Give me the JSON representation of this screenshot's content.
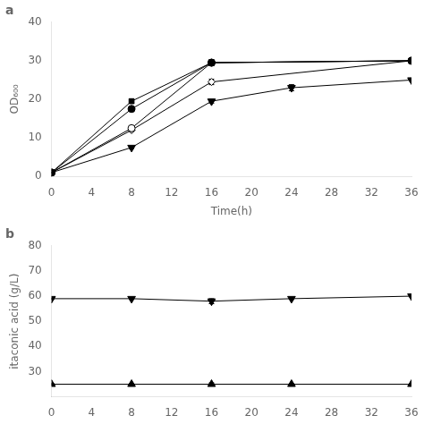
{
  "chart_data": [
    {
      "type": "line",
      "title": "a",
      "xlabel": "Time(h)",
      "ylabel": "OD₆₀₀",
      "xlim": [
        0,
        36
      ],
      "ylim": [
        0,
        40
      ],
      "xticks": [
        0,
        4,
        8,
        12,
        16,
        20,
        24,
        28,
        32,
        36
      ],
      "yticks": [
        0,
        10,
        20,
        30,
        40
      ],
      "grid": false,
      "color": "black",
      "series": [
        {
          "x": [
            0,
            8,
            16,
            36
          ],
          "values": [
            1.0,
            19.5,
            29.5,
            30.0
          ],
          "yerr": [
            0.1,
            0.5,
            0.8,
            0.3
          ],
          "marker": "filled_square"
        },
        {
          "x": [
            0,
            8,
            16,
            36
          ],
          "values": [
            1.0,
            17.5,
            29.5,
            30.0
          ],
          "yerr": [
            0.1,
            0.4,
            0.6,
            0.3
          ],
          "marker": "filled_circle"
        },
        {
          "x": [
            0,
            8,
            16,
            36
          ],
          "values": [
            1.0,
            12.5,
            29.5,
            30.0
          ],
          "yerr": [
            0.1,
            0.3,
            0.5,
            0.3
          ],
          "marker": "open_circle"
        },
        {
          "x": [
            0,
            8,
            16,
            36
          ],
          "values": [
            1.0,
            12.0,
            24.5,
            30.0
          ],
          "yerr": [
            0.1,
            0.3,
            0.7,
            0.3
          ],
          "marker": "open_diamond"
        },
        {
          "x": [
            0,
            8,
            16,
            24,
            36
          ],
          "values": [
            1.0,
            7.5,
            19.5,
            23.0,
            25.0
          ],
          "yerr": [
            0.1,
            0.3,
            0.5,
            0.8,
            0.3
          ],
          "marker": "filled_triangle_down"
        }
      ]
    },
    {
      "type": "line",
      "title": "b",
      "ylabel": "itaconic acid (g/L)",
      "xlim": [
        0,
        36
      ],
      "ylim": [
        20,
        80
      ],
      "xticks": [
        0,
        4,
        8,
        12,
        16,
        20,
        24,
        28,
        32,
        36
      ],
      "yticks": [
        30,
        40,
        50,
        60,
        70,
        80
      ],
      "grid": false,
      "color": "black",
      "series": [
        {
          "x": [
            0,
            8,
            16,
            24,
            36
          ],
          "values": [
            59.0,
            59.0,
            58.0,
            59.0,
            60.0
          ],
          "yerr": [
            0.3,
            0.3,
            1.0,
            0.3,
            0.3
          ],
          "marker": "filled_triangle_down"
        },
        {
          "x": [
            0,
            8,
            16,
            24,
            36
          ],
          "values": [
            25.0,
            25.0,
            25.0,
            25.0,
            25.0
          ],
          "yerr": [
            0.3,
            0.3,
            0.5,
            0.3,
            0.3
          ],
          "marker": "filled_triangle_up"
        }
      ]
    }
  ]
}
